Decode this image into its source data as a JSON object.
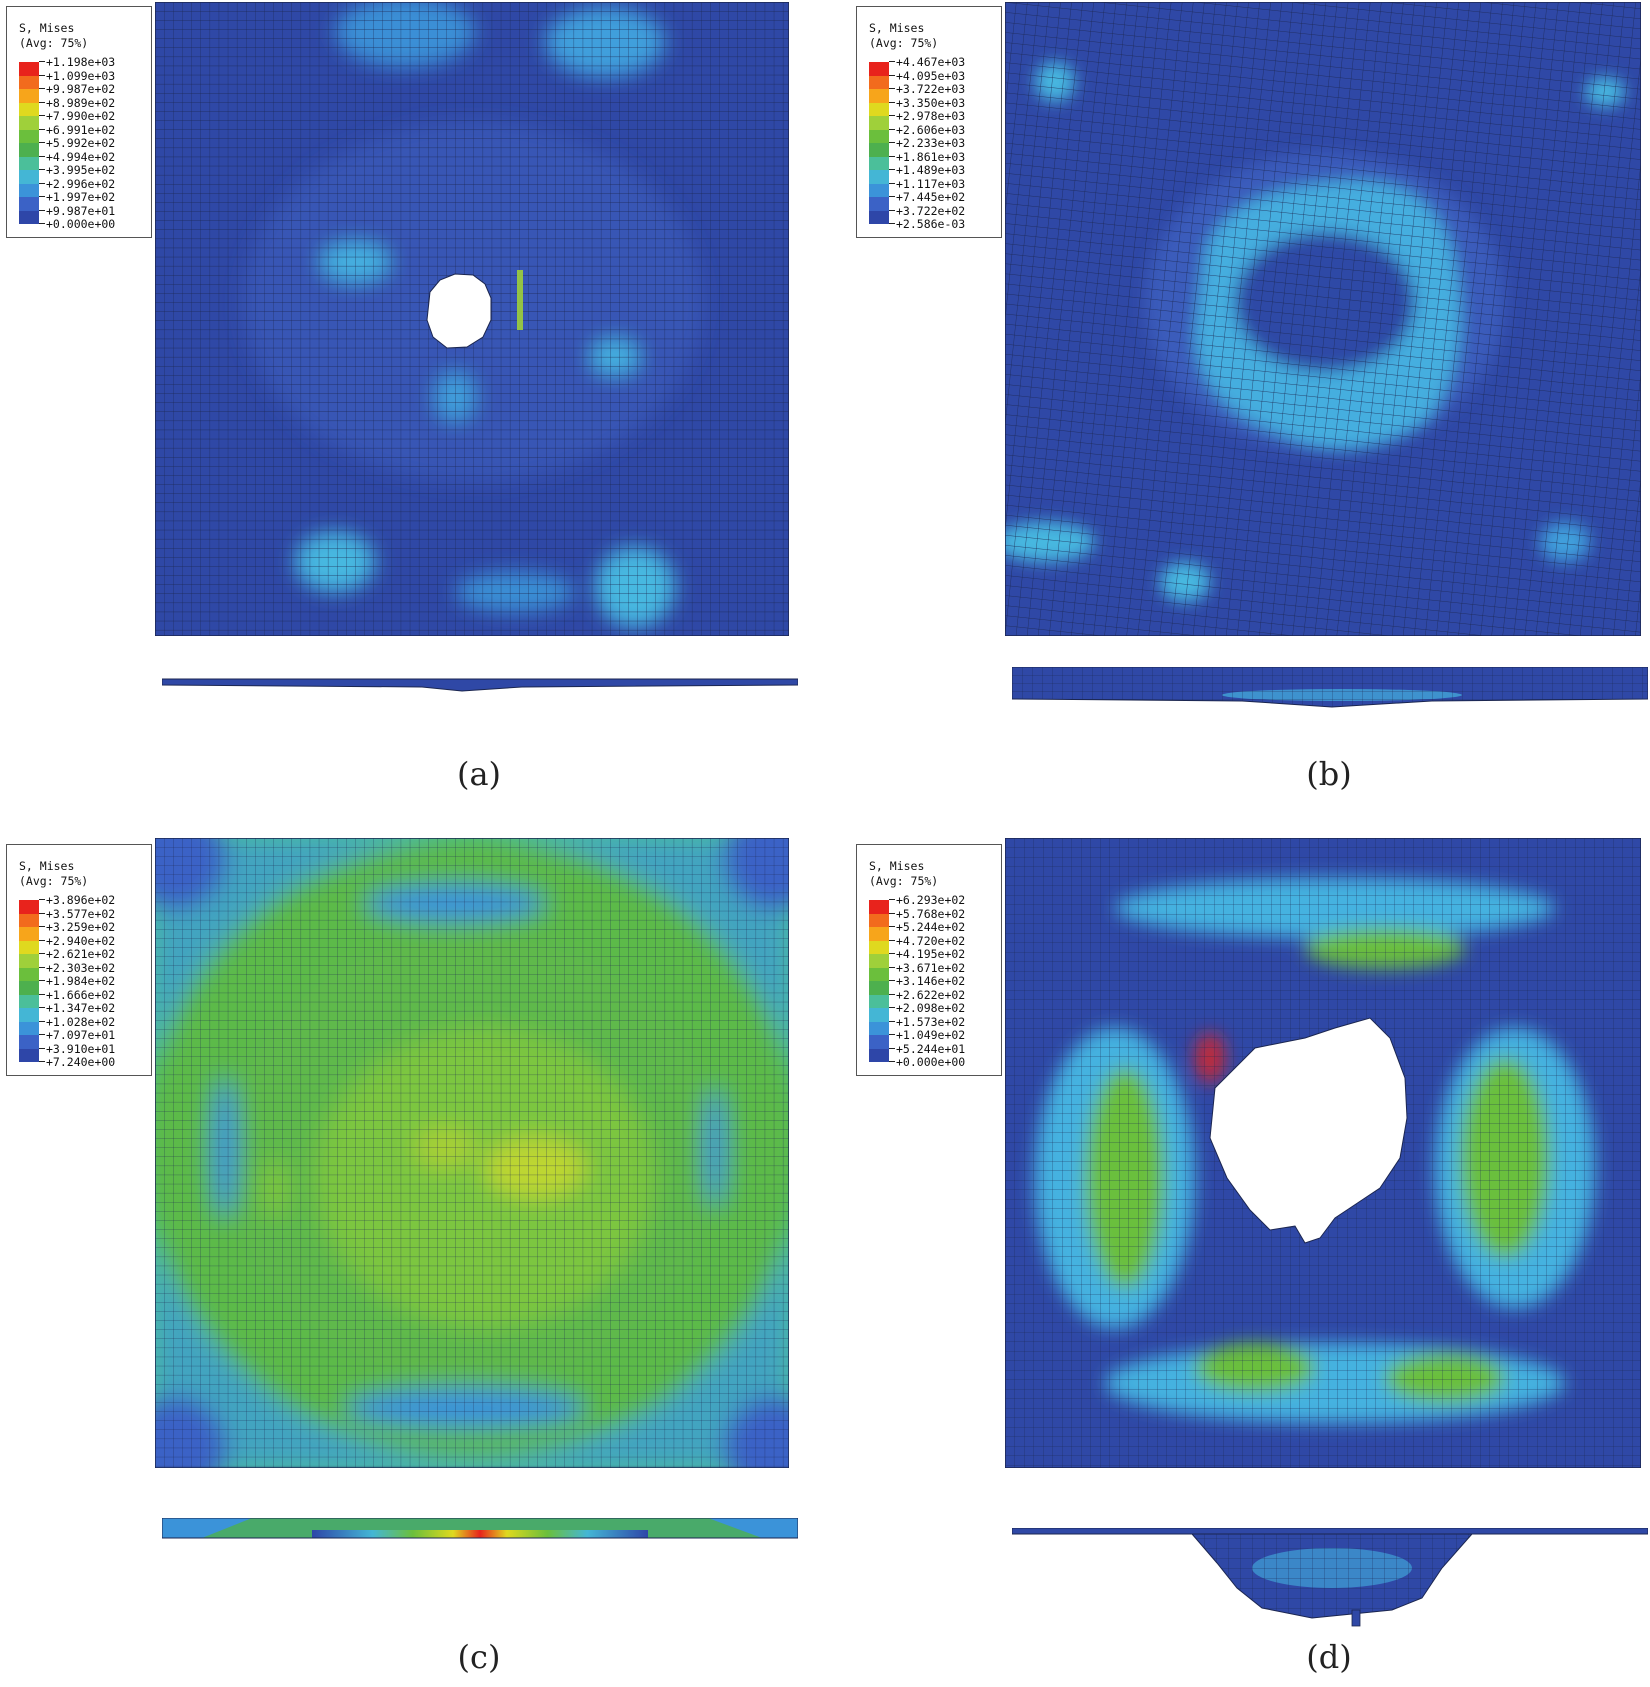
{
  "legend_title": "S, Mises",
  "legend_subtitle": "(Avg: 75%)",
  "contour_colors": [
    "#e8231c",
    "#f26b1d",
    "#f7a51b",
    "#dfd91f",
    "#9fd03a",
    "#6bbf3c",
    "#4db04e",
    "#4bbf9a",
    "#44b6d5",
    "#3b93d9",
    "#3b62c6",
    "#2e46a8"
  ],
  "panels": [
    {
      "id": "a",
      "caption": "(a)",
      "legend_values": [
        "+1.198e+03",
        "+1.099e+03",
        "+9.987e+02",
        "+8.989e+02",
        "+7.990e+02",
        "+6.991e+02",
        "+5.992e+02",
        "+4.994e+02",
        "+3.995e+02",
        "+2.996e+02",
        "+1.997e+02",
        "+9.987e+01",
        "+0.000e+00"
      ]
    },
    {
      "id": "b",
      "caption": "(b)",
      "legend_values": [
        "+4.467e+03",
        "+4.095e+03",
        "+3.722e+03",
        "+3.350e+03",
        "+2.978e+03",
        "+2.606e+03",
        "+2.233e+03",
        "+1.861e+03",
        "+1.489e+03",
        "+1.117e+03",
        "+7.445e+02",
        "+3.722e+02",
        "+2.586e-03"
      ]
    },
    {
      "id": "c",
      "caption": "(c)",
      "legend_values": [
        "+3.896e+02",
        "+3.577e+02",
        "+3.259e+02",
        "+2.940e+02",
        "+2.621e+02",
        "+2.303e+02",
        "+1.984e+02",
        "+1.666e+02",
        "+1.347e+02",
        "+1.028e+02",
        "+7.097e+01",
        "+3.910e+01",
        "+7.240e+00"
      ]
    },
    {
      "id": "d",
      "caption": "(d)",
      "legend_values": [
        "+6.293e+02",
        "+5.768e+02",
        "+5.244e+02",
        "+4.720e+02",
        "+4.195e+02",
        "+3.671e+02",
        "+3.146e+02",
        "+2.622e+02",
        "+2.098e+02",
        "+1.573e+02",
        "+1.049e+02",
        "+5.244e+01",
        "+0.000e+00"
      ]
    }
  ]
}
